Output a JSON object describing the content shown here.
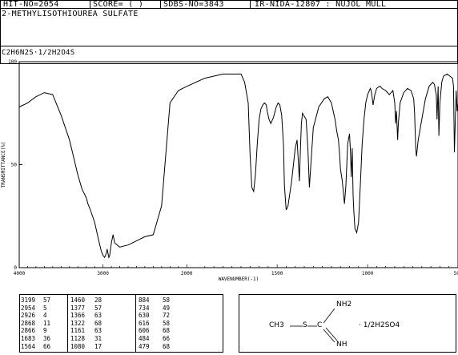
{
  "header": {
    "hit_no": "HIT-NO=2054",
    "score": "SCORE= (  )",
    "sdbs_no": "SDBS-NO=3843",
    "ir_info": "IR-NIDA-12807 : NUJOL MULL",
    "compound": "2-METHYLISOTHIOUREA SULFATE",
    "formula": "C2H6N2S·1/2H2O4S"
  },
  "chart_data": {
    "type": "line",
    "title": "",
    "xlabel": "WAVENUMBER(-1)",
    "ylabel": "TRANSMITTANCE(%)",
    "xlim": [
      4000,
      500
    ],
    "ylim": [
      0,
      100
    ],
    "x_ticks": [
      "4000",
      "3000",
      "2000",
      "1500",
      "1000",
      "500"
    ],
    "y_ticks": [
      "100",
      "50",
      "0"
    ],
    "grid": false,
    "legend": "none",
    "series": [
      {
        "x": [
          4000,
          3900,
          3800,
          3700,
          3600,
          3500,
          3400,
          3300,
          3250,
          3200,
          3180,
          3150,
          3100,
          3050,
          3020,
          3000,
          2980,
          2960,
          2950,
          2930,
          2920,
          2900,
          2880,
          2860,
          2800,
          2700,
          2600,
          2500,
          2400,
          2300,
          2200,
          2100,
          2000,
          1900,
          1800,
          1700,
          1680,
          1660,
          1650,
          1640,
          1630,
          1620,
          1610,
          1600,
          1590,
          1580,
          1570,
          1560,
          1555,
          1545,
          1535,
          1520,
          1505,
          1495,
          1485,
          1475,
          1470,
          1465,
          1460,
          1450,
          1440,
          1420,
          1400,
          1390,
          1385,
          1377,
          1372,
          1366,
          1360,
          1340,
          1330,
          1322,
          1315,
          1300,
          1270,
          1240,
          1220,
          1200,
          1180,
          1170,
          1161,
          1155,
          1150,
          1140,
          1128,
          1120,
          1110,
          1100,
          1095,
          1090,
          1085,
          1080,
          1075,
          1070,
          1060,
          1050,
          1040,
          1030,
          1020,
          1010,
          1000,
          990,
          985,
          980,
          975,
          970,
          960,
          950,
          935,
          930,
          920,
          900,
          880,
          860,
          850,
          845,
          840,
          834,
          830,
          820,
          800,
          780,
          760,
          745,
          740,
          734,
          730,
          720,
          700,
          680,
          660,
          640,
          630,
          625,
          620,
          616,
          610,
          606,
          600,
          590,
          580,
          560,
          545,
          530,
          525,
          520,
          510,
          505,
          500
        ],
        "y": [
          78,
          80,
          83,
          85,
          84,
          74,
          62,
          45,
          38,
          34,
          31,
          28,
          22,
          13,
          8,
          6,
          5,
          7,
          9,
          5,
          6,
          12,
          16,
          12,
          10,
          11,
          13,
          15,
          16,
          30,
          80,
          86,
          88,
          92,
          94,
          94,
          90,
          80,
          55,
          39,
          37,
          45,
          60,
          72,
          77,
          79,
          80,
          79,
          76,
          72,
          70,
          73,
          78,
          80,
          79,
          74,
          67,
          59,
          40,
          28,
          30,
          42,
          58,
          62,
          55,
          42,
          56,
          70,
          75,
          72,
          58,
          39,
          48,
          68,
          78,
          82,
          83,
          80,
          72,
          66,
          62,
          55,
          48,
          42,
          31,
          40,
          60,
          65,
          57,
          44,
          58,
          35,
          26,
          19,
          17,
          22,
          40,
          60,
          72,
          80,
          84,
          86,
          87,
          86,
          83,
          79,
          84,
          87,
          88,
          88,
          87,
          86,
          84,
          86,
          80,
          70,
          76,
          62,
          70,
          80,
          85,
          87,
          86,
          82,
          75,
          58,
          54,
          62,
          72,
          82,
          88,
          90,
          89,
          86,
          84,
          72,
          88,
          64,
          80,
          90,
          93,
          94,
          93,
          92,
          88,
          56,
          86,
          76,
          80
        ]
      }
    ]
  },
  "peaks": [
    [
      "3199",
      "57",
      "1460",
      "28",
      "884",
      "58"
    ],
    [
      "2954",
      "5",
      "1377",
      "57",
      "734",
      "49"
    ],
    [
      "2926",
      "4",
      "1366",
      "63",
      "630",
      "72"
    ],
    [
      "2868",
      "11",
      "1322",
      "68",
      "616",
      "58"
    ],
    [
      "2866",
      "9",
      "1161",
      "63",
      "606",
      "68"
    ],
    [
      "1683",
      "36",
      "1128",
      "31",
      "484",
      "66"
    ],
    [
      "1564",
      "66",
      "1080",
      "17",
      "479",
      "68"
    ]
  ],
  "structure": {
    "ch3": "CH3",
    "s": "S",
    "c": "C",
    "nh2": "NH2",
    "nh": "NH",
    "salt": "· 1/2H2SO4"
  }
}
